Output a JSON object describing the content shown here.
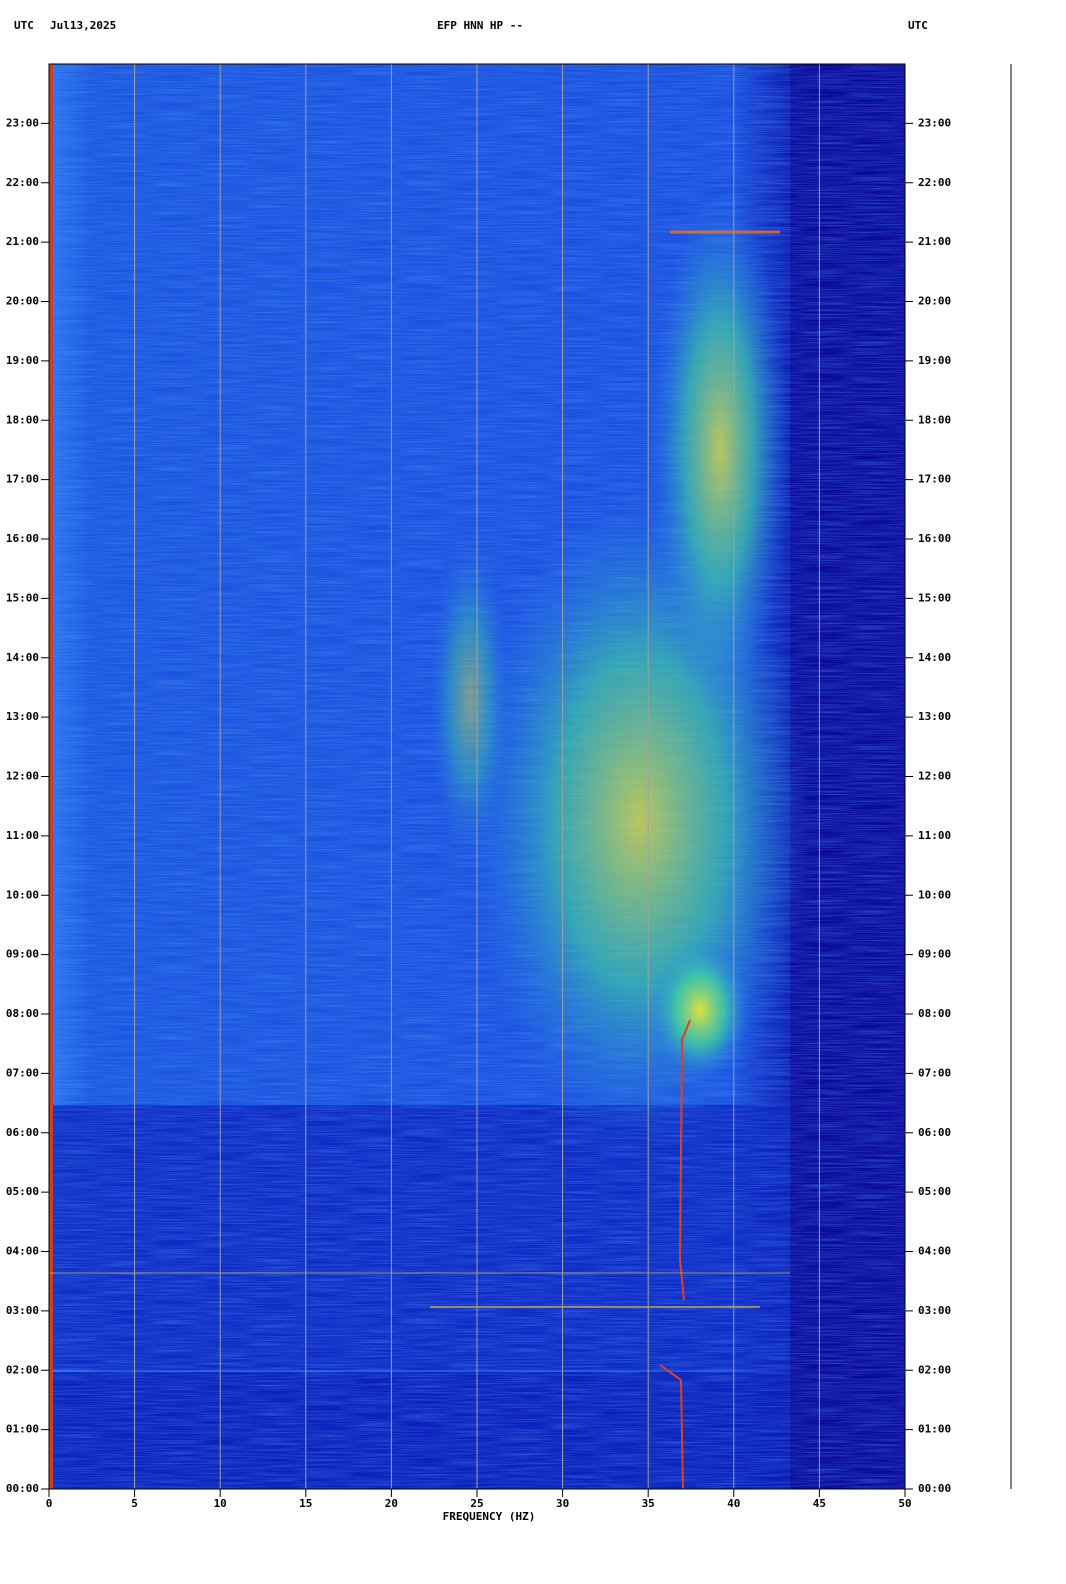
{
  "chart_data": {
    "type": "spectrogram",
    "title": "EFP HNN HP --",
    "timezone_left": "UTC",
    "date": "Jul13,2025",
    "timezone_right": "UTC",
    "xlabel": "FREQUENCY (HZ)",
    "xlim": [
      0,
      50
    ],
    "xticks": [
      0,
      5,
      10,
      15,
      20,
      25,
      30,
      35,
      40,
      45,
      50
    ],
    "ylim": [
      0,
      24
    ],
    "yticks": [
      {
        "value": 0,
        "label": "00:00"
      },
      {
        "value": 1,
        "label": "01:00"
      },
      {
        "value": 2,
        "label": "02:00"
      },
      {
        "value": 3,
        "label": "03:00"
      },
      {
        "value": 4,
        "label": "04:00"
      },
      {
        "value": 5,
        "label": "05:00"
      },
      {
        "value": 6,
        "label": "06:00"
      },
      {
        "value": 7,
        "label": "07:00"
      },
      {
        "value": 8,
        "label": "08:00"
      },
      {
        "value": 9,
        "label": "09:00"
      },
      {
        "value": 10,
        "label": "10:00"
      },
      {
        "value": 11,
        "label": "11:00"
      },
      {
        "value": 12,
        "label": "12:00"
      },
      {
        "value": 13,
        "label": "13:00"
      },
      {
        "value": 14,
        "label": "14:00"
      },
      {
        "value": 15,
        "label": "15:00"
      },
      {
        "value": 16,
        "label": "16:00"
      },
      {
        "value": 17,
        "label": "17:00"
      },
      {
        "value": 18,
        "label": "18:00"
      },
      {
        "value": 19,
        "label": "19:00"
      },
      {
        "value": 20,
        "label": "20:00"
      },
      {
        "value": 21,
        "label": "21:00"
      },
      {
        "value": 22,
        "label": "22:00"
      },
      {
        "value": 23,
        "label": "23:00"
      }
    ],
    "grid": true,
    "grid_color": "#a0a0a0"
  }
}
